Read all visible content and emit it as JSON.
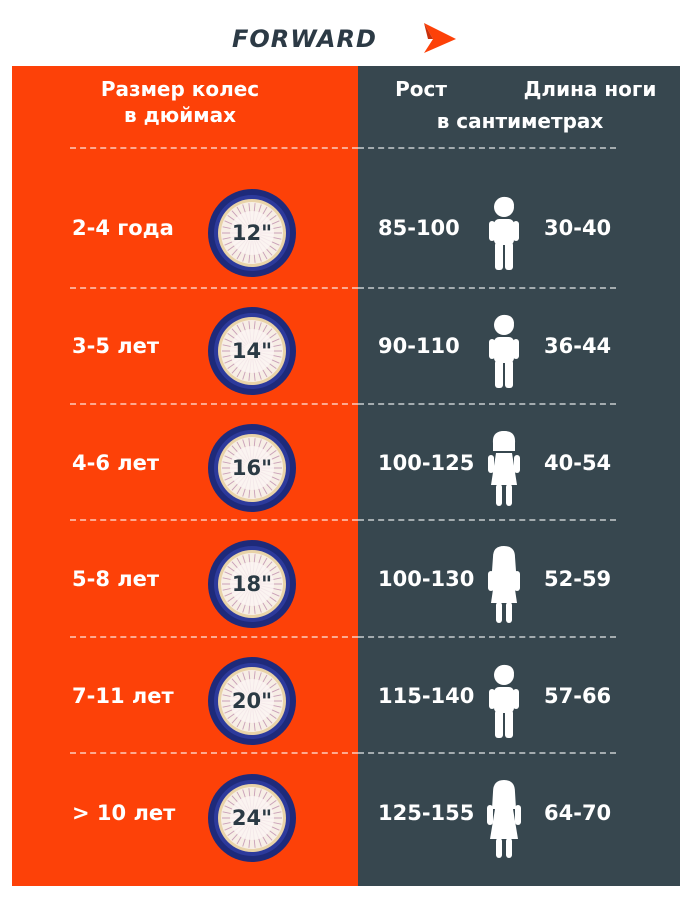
{
  "brand": {
    "name": "FORWARD",
    "accent_color": "#fd4108",
    "dark_color": "#37474f"
  },
  "headers": {
    "wheel_size": [
      "Размер колес",
      "в дюймах"
    ],
    "height": "Рост",
    "leg_length": "Длина ноги",
    "unit": "в сантиметрах"
  },
  "rows": [
    {
      "age": "2-4 года",
      "wheel": "12\"",
      "height": "85-100",
      "leg": "30-40",
      "child_icon": "boy-icon"
    },
    {
      "age": "3-5 лет",
      "wheel": "14\"",
      "height": "90-110",
      "leg": "36-44",
      "child_icon": "boy-icon"
    },
    {
      "age": "4-6 лет",
      "wheel": "16\"",
      "height": "100-125",
      "leg": "40-54",
      "child_icon": "girl-icon"
    },
    {
      "age": "5-8 лет",
      "wheel": "18\"",
      "height": "100-130",
      "leg": "52-59",
      "child_icon": "girl-long-hair-icon"
    },
    {
      "age": "7-11 лет",
      "wheel": "20\"",
      "height": "115-140",
      "leg": "57-66",
      "child_icon": "boy-icon"
    },
    {
      "age": "> 10 лет",
      "wheel": "24\"",
      "height": "125-155",
      "leg": "64-70",
      "child_icon": "girl-dress-icon"
    }
  ]
}
